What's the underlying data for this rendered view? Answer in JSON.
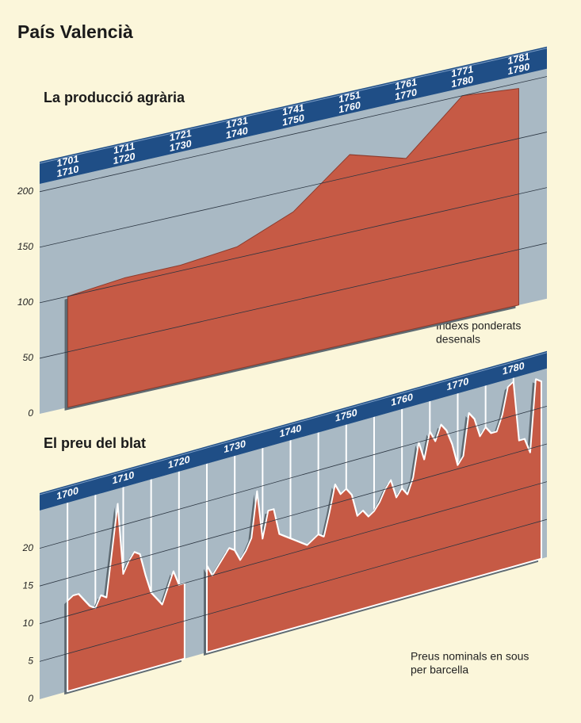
{
  "title": "País Valencià",
  "chart_data": [
    {
      "type": "area",
      "title": "La producció agrària",
      "note": [
        "Indexs ponderats",
        "desenals"
      ],
      "categories": [
        [
          "1701",
          "1710"
        ],
        [
          "1711",
          "1720"
        ],
        [
          "1721",
          "1730"
        ],
        [
          "1731",
          "1740"
        ],
        [
          "1741",
          "1750"
        ],
        [
          "1751",
          "1760"
        ],
        [
          "1761",
          "1770"
        ],
        [
          "1771",
          "1780"
        ],
        [
          "1781",
          "1790"
        ]
      ],
      "values": [
        100,
        105,
        105,
        110,
        130,
        170,
        155,
        200,
        195
      ],
      "color": "#c65a45",
      "ylim": [
        0,
        207
      ],
      "yticks": [
        0,
        50,
        100,
        150,
        200
      ],
      "grid": true
    },
    {
      "type": "area",
      "title": "El preu del blat",
      "note": [
        "Preus nominals en sous",
        "per barcella"
      ],
      "x": [
        1700,
        1701,
        1702,
        1703,
        1704,
        1705,
        1706,
        1707,
        1708,
        1709,
        1710,
        1711,
        1712,
        1713,
        1714,
        1715,
        1716,
        1717,
        1718,
        1719,
        1720,
        1721,
        1722,
        1723,
        1724,
        1725,
        1726,
        1727,
        1728,
        1729,
        1730,
        1731,
        1732,
        1733,
        1734,
        1735,
        1736,
        1737,
        1738,
        1739,
        1740,
        1741,
        1742,
        1743,
        1744,
        1745,
        1746,
        1747,
        1748,
        1749,
        1750,
        1751,
        1752,
        1753,
        1754,
        1755,
        1756,
        1757,
        1758,
        1759,
        1760,
        1761,
        1762,
        1763,
        1764,
        1765,
        1766,
        1767,
        1768,
        1769,
        1770,
        1771,
        1772,
        1773,
        1774,
        1775,
        1776,
        1777,
        1778,
        1779,
        1780,
        1781,
        1782,
        1783,
        1784,
        1785
      ],
      "values": [
        12,
        12.5,
        12.5,
        11.5,
        10.5,
        10,
        11.5,
        11,
        17,
        23,
        13.5,
        15,
        16,
        15.5,
        12.5,
        10,
        9,
        8,
        10,
        12,
        10,
        10,
        null,
        null,
        null,
        11.5,
        10,
        11,
        12,
        13,
        12.5,
        11,
        12,
        13.5,
        19.5,
        13,
        16.5,
        16.5,
        13,
        12.5,
        12,
        11.5,
        11,
        10.5,
        11,
        11.5,
        11,
        14,
        17.5,
        16,
        16.5,
        15.5,
        12.5,
        13,
        12,
        12.5,
        13.5,
        15,
        16,
        13.5,
        14.5,
        13.5,
        15.5,
        20,
        17.5,
        21,
        19.5,
        21.5,
        20.5,
        18.5,
        15.5,
        16.5,
        22,
        21,
        18.5,
        19.5,
        18.5,
        18.5,
        20.5,
        24,
        24.5,
        16.5,
        16.5,
        14.5,
        24,
        23.5
      ],
      "color": "#c65a45",
      "xlim": [
        1695,
        1786
      ],
      "xticks": [
        1700,
        1710,
        1720,
        1730,
        1740,
        1750,
        1760,
        1770,
        1780
      ],
      "ylim": [
        0,
        25
      ],
      "yticks": [
        0,
        5,
        10,
        15,
        20
      ],
      "grid": true
    }
  ]
}
